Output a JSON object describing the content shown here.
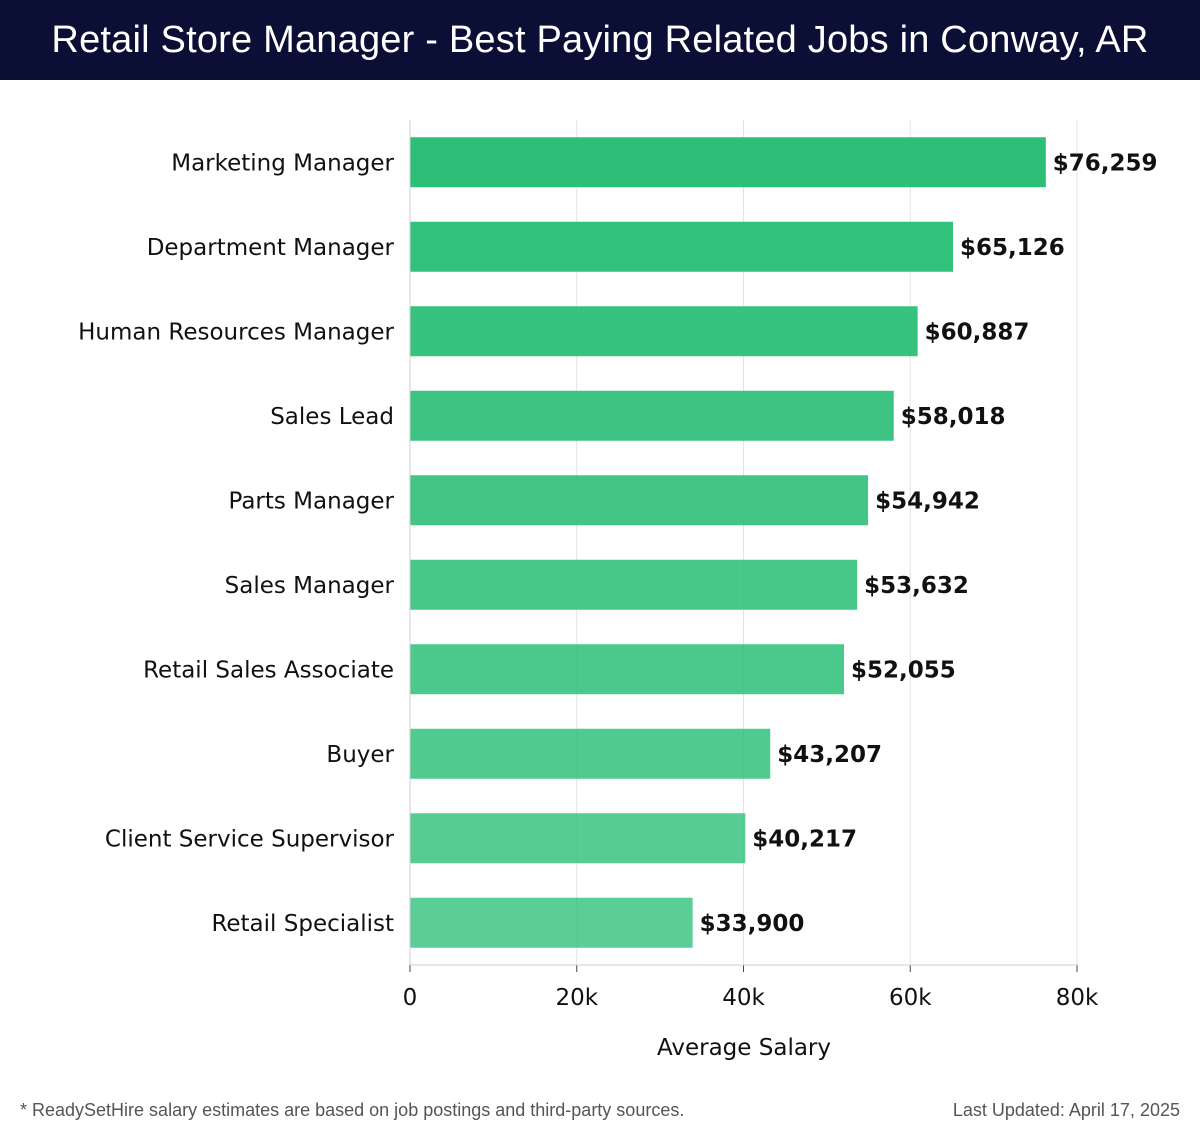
{
  "header": {
    "title": "Retail Store Manager - Best Paying Related Jobs in Conway, AR"
  },
  "footer": {
    "note": "* ReadySetHire salary estimates are based on job postings and third-party sources.",
    "updated": "Last Updated: April 17, 2025"
  },
  "chart_data": {
    "type": "bar",
    "orientation": "horizontal",
    "title": "Retail Store Manager - Best Paying Related Jobs in Conway, AR",
    "xlabel": "Average Salary",
    "ylabel": "",
    "xlim": [
      0,
      80000
    ],
    "grid": true,
    "categories": [
      "Marketing Manager",
      "Department Manager",
      "Human Resources Manager",
      "Sales Lead",
      "Parts Manager",
      "Sales Manager",
      "Retail Sales Associate",
      "Buyer",
      "Client Service Supervisor",
      "Retail Specialist"
    ],
    "values": [
      76259,
      65126,
      60887,
      58018,
      54942,
      53632,
      52055,
      43207,
      40217,
      33900
    ],
    "value_labels": [
      "$76,259",
      "$65,126",
      "$60,887",
      "$58,018",
      "$54,942",
      "$53,632",
      "$52,055",
      "$43,207",
      "$40,217",
      "$33,900"
    ],
    "ticks": [
      0,
      20000,
      40000,
      60000,
      80000
    ],
    "tick_labels": [
      "0",
      "20k",
      "40k",
      "60k",
      "80k"
    ],
    "bar_color": "#2dbf78"
  }
}
